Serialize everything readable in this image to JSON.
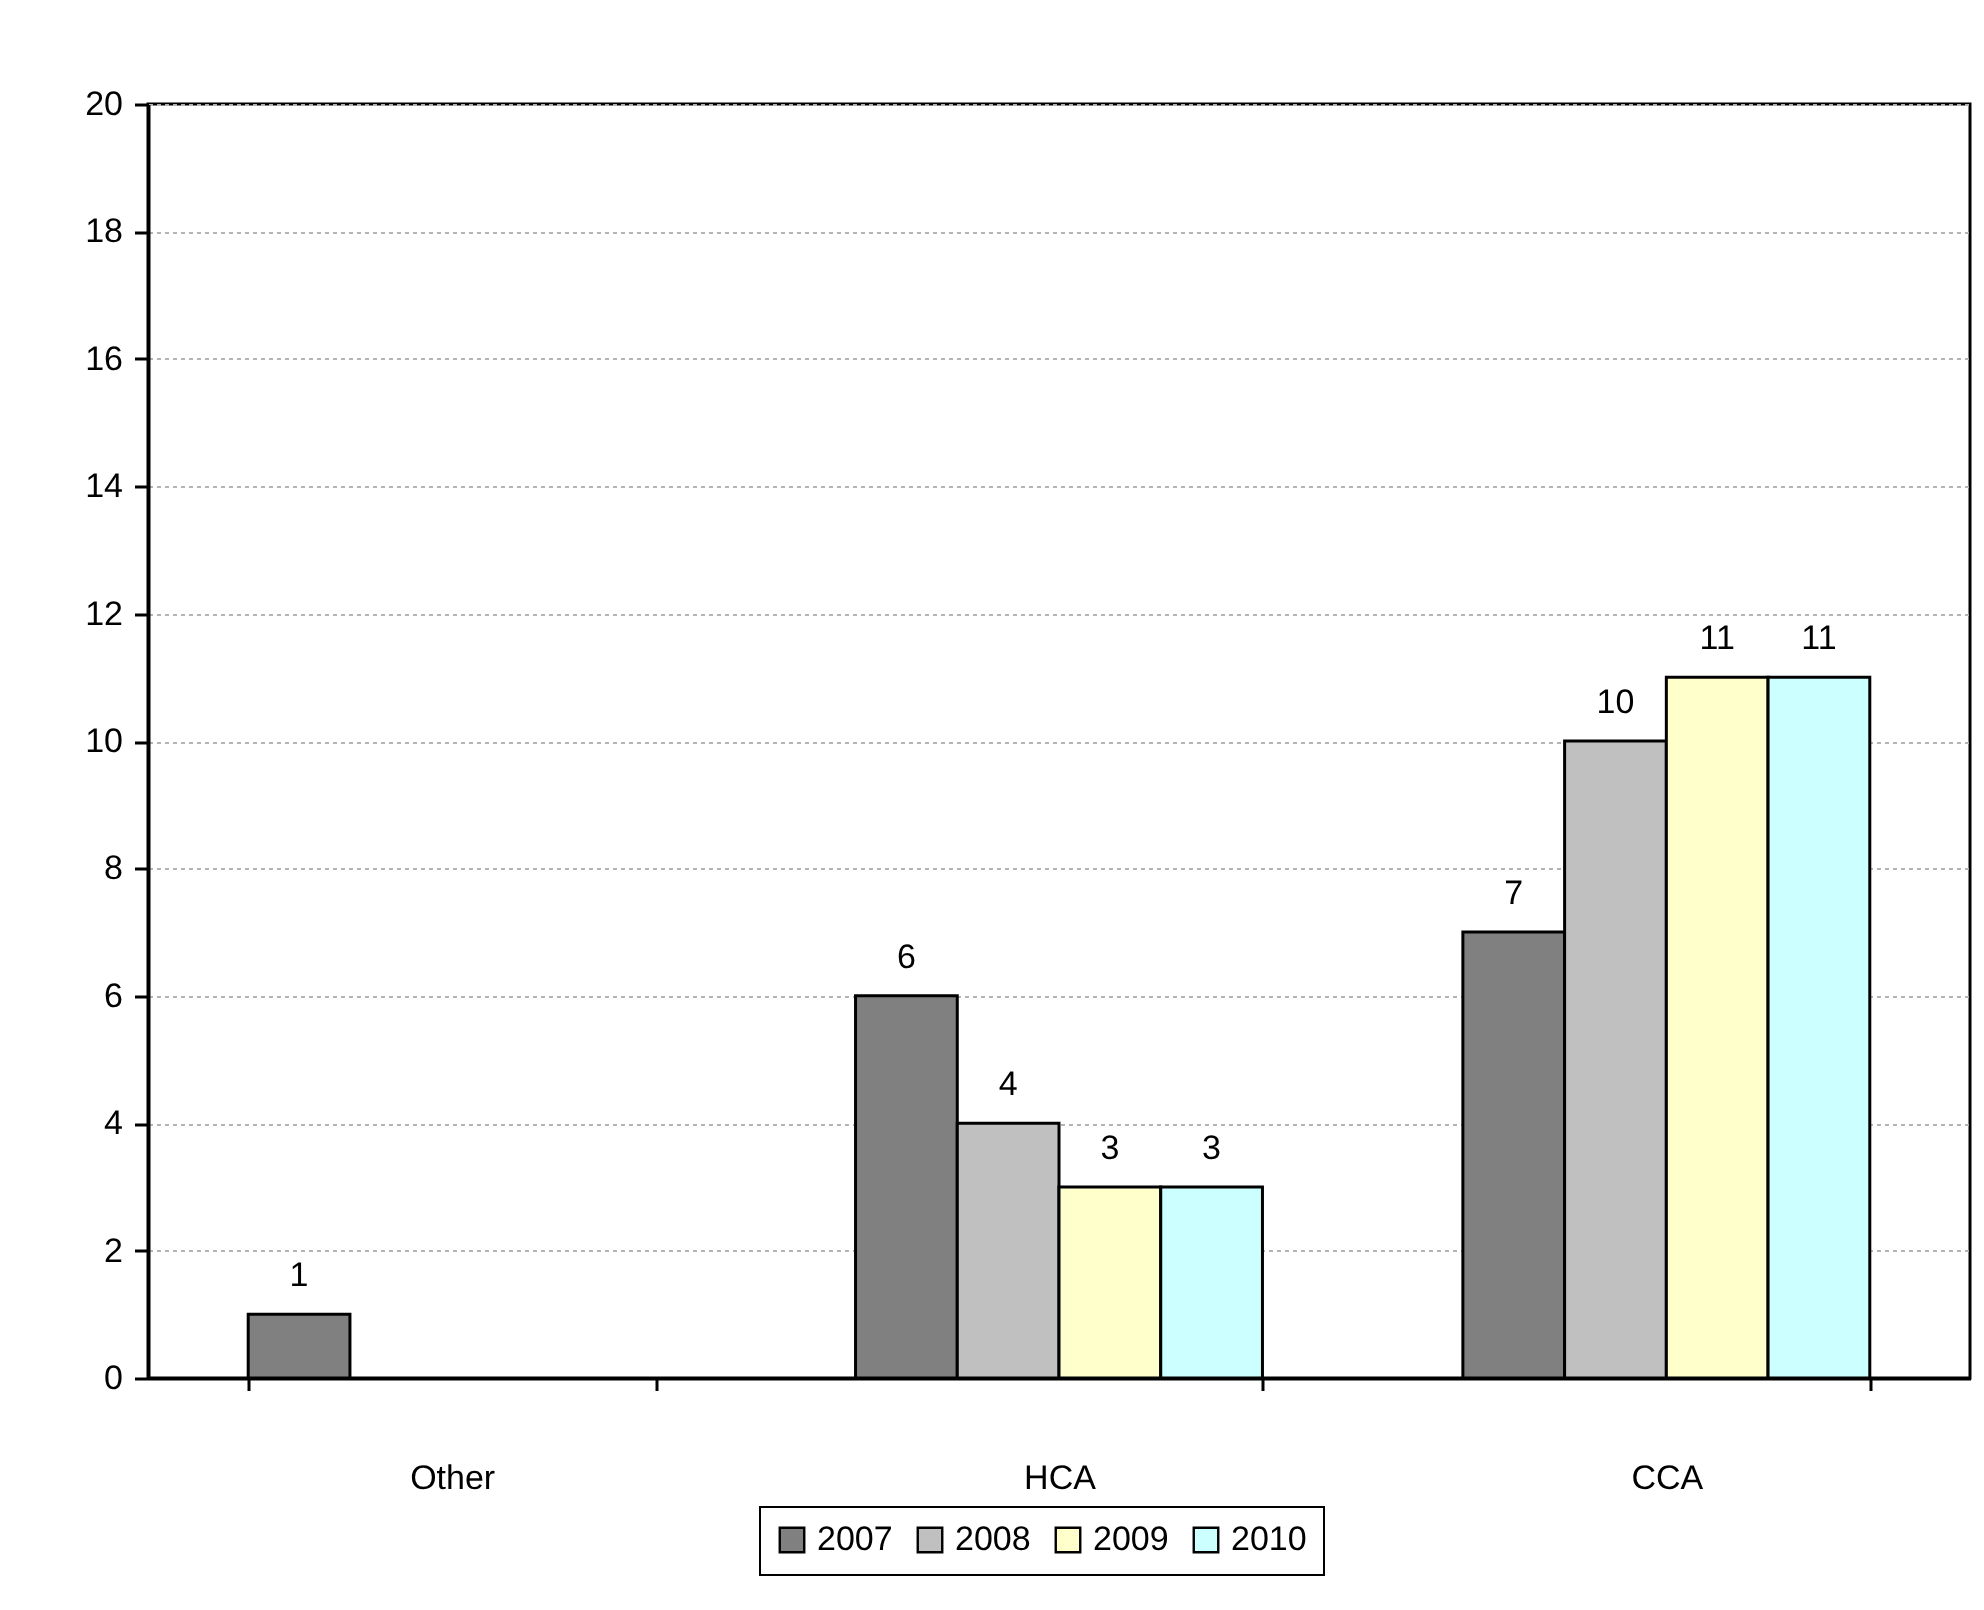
{
  "chart_data": {
    "type": "bar",
    "categories": [
      "Other",
      "HCA",
      "CCA"
    ],
    "series": [
      {
        "name": "2007",
        "color": "#808080",
        "values": [
          1,
          6,
          7
        ]
      },
      {
        "name": "2008",
        "color": "#c0c0c0",
        "values": [
          null,
          4,
          10
        ]
      },
      {
        "name": "2009",
        "color": "#ffffcc",
        "values": [
          null,
          3,
          11
        ]
      },
      {
        "name": "2010",
        "color": "#ccffff",
        "values": [
          null,
          3,
          11
        ]
      }
    ],
    "ylim": [
      0,
      20
    ],
    "yticks": [
      0,
      2,
      4,
      6,
      8,
      10,
      12,
      14,
      16,
      18,
      20
    ],
    "grid": "y",
    "legend": "bottom",
    "data_labels": true
  }
}
